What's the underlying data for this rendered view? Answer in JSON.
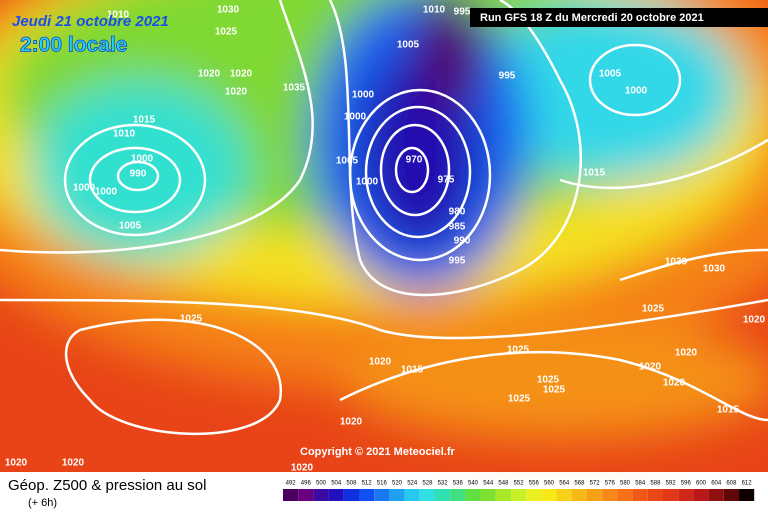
{
  "header": {
    "date": "Jeudi 21 octobre 2021",
    "time": "2:00 locale",
    "run": "Run GFS 18 Z du Mercredi 20 octobre 2021"
  },
  "map": {
    "copyright": "Copyright © 2021 Meteociel.fr",
    "isobar_labels": [
      "1010",
      "1030",
      "1025",
      "1010",
      "995",
      "1005",
      "995",
      "1005",
      "1000",
      "1020",
      "1020",
      "1020",
      "1035",
      "1000",
      "1000",
      "1015",
      "1010",
      "1000",
      "990",
      "1000",
      "1000",
      "1005",
      "1000",
      "970",
      "975",
      "1015",
      "980",
      "985",
      "990",
      "995",
      "1005",
      "1025",
      "1030",
      "1030",
      "1025",
      "1020",
      "1025",
      "1020",
      "1015",
      "1020",
      "1020",
      "1020",
      "1025",
      "1025",
      "1025",
      "1015",
      "1020",
      "1020",
      "1020",
      "1020"
    ]
  },
  "footer": {
    "title": "Géop. Z500 & pression au sol",
    "step": "(+ 6h)",
    "scale": {
      "labels": [
        492,
        496,
        500,
        504,
        508,
        512,
        516,
        520,
        524,
        528,
        532,
        536,
        540,
        544,
        548,
        552,
        556,
        560,
        564,
        568,
        572,
        576,
        580,
        584,
        588,
        592,
        596,
        600,
        604,
        608,
        612
      ],
      "colors": [
        "#4a0060",
        "#6a0080",
        "#3c0aa0",
        "#2010c0",
        "#1030e0",
        "#1050f0",
        "#1878f0",
        "#20a0f0",
        "#28c8f0",
        "#30e0e0",
        "#30e0b0",
        "#40e080",
        "#60e040",
        "#80e030",
        "#a8e828",
        "#c8f028",
        "#e8f020",
        "#f8e818",
        "#f8d018",
        "#f8b818",
        "#f8a018",
        "#f88818",
        "#f87018",
        "#f05818",
        "#e84818",
        "#e03818",
        "#d02818",
        "#b81818",
        "#901010",
        "#600808",
        "#100000"
      ]
    }
  }
}
